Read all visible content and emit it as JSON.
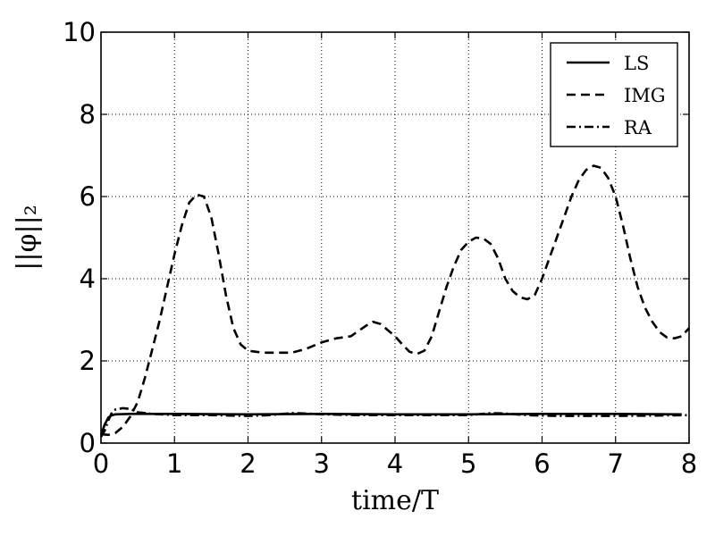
{
  "chart_data": {
    "type": "line",
    "title": "",
    "xlabel": "time/T",
    "ylabel": "||φ||₂",
    "xlim": [
      0,
      8
    ],
    "ylim": [
      0,
      10
    ],
    "xticks": [
      "0",
      "1",
      "2",
      "3",
      "4",
      "5",
      "6",
      "7",
      "8"
    ],
    "yticks": [
      "0",
      "2",
      "4",
      "6",
      "8",
      "10"
    ],
    "grid": true,
    "legend_position": "top-right",
    "series": [
      {
        "name": "LS",
        "style": "solid",
        "color": "#000000",
        "points": [
          [
            0.0,
            0.2
          ],
          [
            0.05,
            0.45
          ],
          [
            0.1,
            0.62
          ],
          [
            0.15,
            0.68
          ],
          [
            0.2,
            0.7
          ],
          [
            0.4,
            0.71
          ],
          [
            1.0,
            0.71
          ],
          [
            2.0,
            0.7
          ],
          [
            3.0,
            0.71
          ],
          [
            4.0,
            0.7
          ],
          [
            5.0,
            0.7
          ],
          [
            6.0,
            0.71
          ],
          [
            7.0,
            0.71
          ],
          [
            7.9,
            0.7
          ]
        ]
      },
      {
        "name": "IMG",
        "style": "dashed",
        "color": "#000000",
        "points": [
          [
            0.0,
            0.22
          ],
          [
            0.1,
            0.2
          ],
          [
            0.2,
            0.25
          ],
          [
            0.3,
            0.4
          ],
          [
            0.4,
            0.65
          ],
          [
            0.5,
            1.0
          ],
          [
            0.6,
            1.6
          ],
          [
            0.7,
            2.3
          ],
          [
            0.8,
            3.0
          ],
          [
            0.9,
            3.8
          ],
          [
            1.0,
            4.6
          ],
          [
            1.1,
            5.3
          ],
          [
            1.2,
            5.85
          ],
          [
            1.3,
            6.05
          ],
          [
            1.4,
            6.0
          ],
          [
            1.5,
            5.5
          ],
          [
            1.6,
            4.6
          ],
          [
            1.7,
            3.6
          ],
          [
            1.8,
            2.8
          ],
          [
            1.9,
            2.4
          ],
          [
            2.0,
            2.25
          ],
          [
            2.2,
            2.2
          ],
          [
            2.4,
            2.2
          ],
          [
            2.6,
            2.2
          ],
          [
            2.8,
            2.3
          ],
          [
            3.0,
            2.45
          ],
          [
            3.2,
            2.55
          ],
          [
            3.4,
            2.6
          ],
          [
            3.6,
            2.85
          ],
          [
            3.7,
            2.95
          ],
          [
            3.8,
            2.9
          ],
          [
            4.0,
            2.6
          ],
          [
            4.1,
            2.4
          ],
          [
            4.2,
            2.22
          ],
          [
            4.3,
            2.17
          ],
          [
            4.4,
            2.25
          ],
          [
            4.5,
            2.6
          ],
          [
            4.6,
            3.2
          ],
          [
            4.7,
            3.8
          ],
          [
            4.8,
            4.3
          ],
          [
            4.9,
            4.7
          ],
          [
            5.0,
            4.9
          ],
          [
            5.1,
            5.0
          ],
          [
            5.2,
            4.98
          ],
          [
            5.3,
            4.85
          ],
          [
            5.4,
            4.5
          ],
          [
            5.5,
            4.0
          ],
          [
            5.6,
            3.7
          ],
          [
            5.7,
            3.55
          ],
          [
            5.8,
            3.5
          ],
          [
            5.9,
            3.6
          ],
          [
            6.0,
            4.0
          ],
          [
            6.1,
            4.5
          ],
          [
            6.2,
            5.0
          ],
          [
            6.3,
            5.5
          ],
          [
            6.4,
            6.0
          ],
          [
            6.5,
            6.4
          ],
          [
            6.6,
            6.65
          ],
          [
            6.7,
            6.75
          ],
          [
            6.8,
            6.7
          ],
          [
            6.9,
            6.45
          ],
          [
            7.0,
            6.0
          ],
          [
            7.1,
            5.3
          ],
          [
            7.2,
            4.5
          ],
          [
            7.3,
            3.8
          ],
          [
            7.4,
            3.3
          ],
          [
            7.5,
            2.95
          ],
          [
            7.6,
            2.7
          ],
          [
            7.7,
            2.57
          ],
          [
            7.8,
            2.55
          ],
          [
            7.9,
            2.6
          ],
          [
            8.0,
            2.8
          ]
        ]
      },
      {
        "name": "RA",
        "style": "dashdot",
        "color": "#000000",
        "points": [
          [
            0.0,
            0.15
          ],
          [
            0.05,
            0.3
          ],
          [
            0.1,
            0.55
          ],
          [
            0.15,
            0.75
          ],
          [
            0.2,
            0.82
          ],
          [
            0.3,
            0.85
          ],
          [
            0.4,
            0.83
          ],
          [
            0.5,
            0.75
          ],
          [
            0.7,
            0.71
          ],
          [
            1.0,
            0.68
          ],
          [
            1.5,
            0.68
          ],
          [
            2.0,
            0.66
          ],
          [
            2.3,
            0.68
          ],
          [
            2.6,
            0.73
          ],
          [
            2.8,
            0.72
          ],
          [
            3.0,
            0.7
          ],
          [
            3.5,
            0.68
          ],
          [
            4.0,
            0.68
          ],
          [
            4.5,
            0.68
          ],
          [
            5.0,
            0.68
          ],
          [
            5.3,
            0.73
          ],
          [
            5.5,
            0.72
          ],
          [
            5.8,
            0.68
          ],
          [
            6.2,
            0.66
          ],
          [
            6.6,
            0.66
          ],
          [
            7.0,
            0.66
          ],
          [
            7.5,
            0.67
          ],
          [
            8.0,
            0.68
          ]
        ]
      }
    ]
  }
}
